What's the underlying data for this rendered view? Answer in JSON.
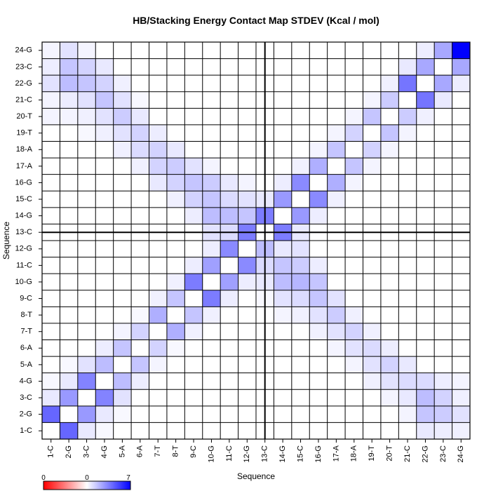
{
  "chart_data": {
    "type": "heatmap",
    "title": "HB/Stacking Energy Contact Map STDEV (Kcal / mol)",
    "xlabel": "Sequence",
    "ylabel": "Sequence",
    "labels": [
      "1-C",
      "2-G",
      "3-C",
      "4-G",
      "5-A",
      "6-A",
      "7-T",
      "8-T",
      "9-C",
      "10-G",
      "11-C",
      "12-G",
      "13-C",
      "14-G",
      "15-C",
      "16-G",
      "17-A",
      "18-A",
      "19-T",
      "20-T",
      "21-C",
      "22-G",
      "23-C",
      "24-G"
    ],
    "value_range": [
      0,
      7
    ],
    "colorscale": {
      "negative_color": "#ff0000",
      "zero_color": "#ffffff",
      "positive_color": "#0000ff",
      "ticks": [
        "0",
        "0",
        "7"
      ]
    },
    "dividers": [
      "12.5"
    ],
    "grid": true,
    "cells": [
      [
        1,
        2,
        4.2
      ],
      [
        1,
        3,
        0.6
      ],
      [
        1,
        4,
        0.2
      ],
      [
        2,
        1,
        4.2
      ],
      [
        2,
        3,
        2.8
      ],
      [
        2,
        4,
        0.6
      ],
      [
        2,
        5,
        0.2
      ],
      [
        3,
        1,
        0.6
      ],
      [
        3,
        2,
        2.8
      ],
      [
        3,
        4,
        3.4
      ],
      [
        3,
        5,
        0.8
      ],
      [
        4,
        1,
        0.2
      ],
      [
        4,
        2,
        0.6
      ],
      [
        4,
        3,
        3.4
      ],
      [
        4,
        5,
        1.8
      ],
      [
        4,
        6,
        0.5
      ],
      [
        5,
        2,
        0.2
      ],
      [
        5,
        3,
        0.8
      ],
      [
        5,
        4,
        1.8
      ],
      [
        5,
        6,
        1.6
      ],
      [
        5,
        7,
        0.3
      ],
      [
        6,
        4,
        0.5
      ],
      [
        6,
        5,
        1.6
      ],
      [
        6,
        7,
        1.2
      ],
      [
        6,
        8,
        0.2
      ],
      [
        7,
        5,
        0.3
      ],
      [
        7,
        6,
        1.2
      ],
      [
        7,
        8,
        2.2
      ],
      [
        7,
        9,
        0.4
      ],
      [
        8,
        6,
        0.2
      ],
      [
        8,
        7,
        2.2
      ],
      [
        8,
        9,
        1.6
      ],
      [
        8,
        10,
        0.4
      ],
      [
        9,
        7,
        0.4
      ],
      [
        9,
        8,
        1.6
      ],
      [
        9,
        10,
        3.6
      ],
      [
        9,
        11,
        0.5
      ],
      [
        10,
        8,
        0.4
      ],
      [
        10,
        9,
        3.6
      ],
      [
        10,
        11,
        2.6
      ],
      [
        10,
        12,
        0.5
      ],
      [
        11,
        9,
        0.5
      ],
      [
        11,
        10,
        2.6
      ],
      [
        11,
        12,
        3.2
      ],
      [
        11,
        13,
        0.3
      ],
      [
        12,
        10,
        0.5
      ],
      [
        12,
        11,
        3.2
      ],
      [
        12,
        13,
        3.6
      ],
      [
        12,
        14,
        0.6
      ],
      [
        13,
        11,
        0.3
      ],
      [
        13,
        12,
        3.6
      ],
      [
        13,
        14,
        3.6
      ],
      [
        13,
        15,
        0.6
      ],
      [
        14,
        12,
        0.6
      ],
      [
        14,
        13,
        3.6
      ],
      [
        14,
        15,
        2.8
      ],
      [
        14,
        16,
        0.5
      ],
      [
        15,
        13,
        0.6
      ],
      [
        15,
        14,
        2.8
      ],
      [
        15,
        16,
        3.2
      ],
      [
        15,
        17,
        0.4
      ],
      [
        16,
        14,
        0.5
      ],
      [
        16,
        15,
        3.2
      ],
      [
        16,
        17,
        2.2
      ],
      [
        16,
        18,
        0.3
      ],
      [
        17,
        15,
        0.4
      ],
      [
        17,
        16,
        2.2
      ],
      [
        17,
        18,
        1.6
      ],
      [
        17,
        19,
        0.3
      ],
      [
        18,
        16,
        0.3
      ],
      [
        18,
        17,
        1.6
      ],
      [
        18,
        19,
        1.2
      ],
      [
        18,
        20,
        0.3
      ],
      [
        19,
        17,
        0.3
      ],
      [
        19,
        18,
        1.2
      ],
      [
        19,
        20,
        1.6
      ],
      [
        19,
        21,
        0.3
      ],
      [
        20,
        18,
        0.3
      ],
      [
        20,
        19,
        1.6
      ],
      [
        20,
        21,
        1.4
      ],
      [
        20,
        22,
        0.4
      ],
      [
        21,
        19,
        0.3
      ],
      [
        21,
        20,
        1.4
      ],
      [
        21,
        22,
        3.8
      ],
      [
        21,
        23,
        0.6
      ],
      [
        22,
        20,
        0.4
      ],
      [
        22,
        21,
        3.8
      ],
      [
        22,
        23,
        2.4
      ],
      [
        22,
        24,
        0.5
      ],
      [
        23,
        21,
        0.6
      ],
      [
        23,
        22,
        2.4
      ],
      [
        23,
        24,
        2.4
      ],
      [
        24,
        22,
        0.5
      ],
      [
        24,
        23,
        2.4
      ],
      [
        24,
        24,
        7.0
      ],
      [
        1,
        20,
        0.3
      ],
      [
        1,
        21,
        0.3
      ],
      [
        1,
        22,
        0.8
      ],
      [
        1,
        23,
        0.5
      ],
      [
        1,
        24,
        0.3
      ],
      [
        2,
        20,
        0.3
      ],
      [
        2,
        21,
        0.5
      ],
      [
        2,
        22,
        1.8
      ],
      [
        2,
        23,
        1.6
      ],
      [
        2,
        24,
        0.8
      ],
      [
        3,
        19,
        0.2
      ],
      [
        3,
        20,
        0.4
      ],
      [
        3,
        21,
        0.8
      ],
      [
        3,
        22,
        1.6
      ],
      [
        3,
        23,
        1.2
      ],
      [
        3,
        24,
        0.3
      ],
      [
        4,
        19,
        0.4
      ],
      [
        4,
        20,
        0.8
      ],
      [
        4,
        21,
        1.6
      ],
      [
        4,
        22,
        1.2
      ],
      [
        4,
        23,
        0.6
      ],
      [
        5,
        18,
        0.4
      ],
      [
        5,
        19,
        0.8
      ],
      [
        5,
        20,
        1.4
      ],
      [
        5,
        21,
        0.8
      ],
      [
        5,
        22,
        0.4
      ],
      [
        6,
        17,
        0.4
      ],
      [
        6,
        18,
        1.0
      ],
      [
        6,
        19,
        1.2
      ],
      [
        6,
        20,
        0.6
      ],
      [
        6,
        21,
        0.2
      ],
      [
        7,
        16,
        0.6
      ],
      [
        7,
        17,
        1.2
      ],
      [
        7,
        18,
        1.2
      ],
      [
        7,
        19,
        0.5
      ],
      [
        8,
        15,
        0.4
      ],
      [
        8,
        16,
        1.2
      ],
      [
        8,
        17,
        1.4
      ],
      [
        8,
        18,
        0.6
      ],
      [
        9,
        14,
        0.5
      ],
      [
        9,
        15,
        1.2
      ],
      [
        9,
        16,
        1.6
      ],
      [
        9,
        17,
        0.8
      ],
      [
        10,
        13,
        0.8
      ],
      [
        10,
        14,
        1.8
      ],
      [
        10,
        15,
        1.6
      ],
      [
        10,
        16,
        1.4
      ],
      [
        10,
        17,
        0.3
      ],
      [
        11,
        13,
        1.0
      ],
      [
        11,
        14,
        1.8
      ],
      [
        11,
        15,
        1.0
      ],
      [
        11,
        16,
        0.6
      ],
      [
        12,
        14,
        1.6
      ],
      [
        12,
        15,
        0.8
      ],
      [
        12,
        16,
        0.3
      ],
      [
        13,
        9,
        0.2
      ],
      [
        13,
        10,
        0.6
      ],
      [
        13,
        11,
        1.0
      ],
      [
        13,
        12,
        1.8
      ],
      [
        14,
        8,
        0.3
      ],
      [
        14,
        9,
        0.8
      ],
      [
        14,
        10,
        1.8
      ],
      [
        14,
        11,
        1.6
      ],
      [
        15,
        8,
        0.4
      ],
      [
        15,
        9,
        1.0
      ],
      [
        15,
        10,
        2.0
      ],
      [
        15,
        11,
        1.4
      ],
      [
        15,
        12,
        0.8
      ],
      [
        16,
        7,
        0.4
      ],
      [
        16,
        8,
        0.8
      ],
      [
        16,
        9,
        1.6
      ],
      [
        16,
        10,
        1.6
      ],
      [
        16,
        11,
        0.5
      ],
      [
        17,
        6,
        0.3
      ],
      [
        17,
        7,
        0.8
      ],
      [
        17,
        8,
        1.4
      ],
      [
        17,
        9,
        0.8
      ],
      [
        18,
        5,
        0.3
      ],
      [
        18,
        6,
        0.8
      ],
      [
        18,
        7,
        1.2
      ],
      [
        18,
        8,
        0.4
      ],
      [
        19,
        4,
        0.4
      ],
      [
        19,
        5,
        0.8
      ],
      [
        19,
        6,
        1.0
      ],
      [
        19,
        7,
        0.4
      ],
      [
        20,
        3,
        0.3
      ],
      [
        20,
        4,
        0.8
      ],
      [
        20,
        5,
        1.2
      ],
      [
        20,
        6,
        0.5
      ],
      [
        21,
        2,
        0.3
      ],
      [
        21,
        3,
        0.6
      ],
      [
        21,
        4,
        1.0
      ],
      [
        21,
        5,
        0.6
      ],
      [
        22,
        1,
        0.6
      ],
      [
        22,
        2,
        1.6
      ],
      [
        22,
        3,
        1.8
      ],
      [
        22,
        4,
        1.0
      ],
      [
        23,
        1,
        0.5
      ],
      [
        23,
        2,
        1.4
      ],
      [
        23,
        3,
        1.2
      ],
      [
        23,
        4,
        0.5
      ],
      [
        24,
        1,
        0.4
      ],
      [
        24,
        2,
        0.8
      ],
      [
        24,
        3,
        0.4
      ],
      [
        24,
        4,
        0.3
      ]
    ]
  }
}
